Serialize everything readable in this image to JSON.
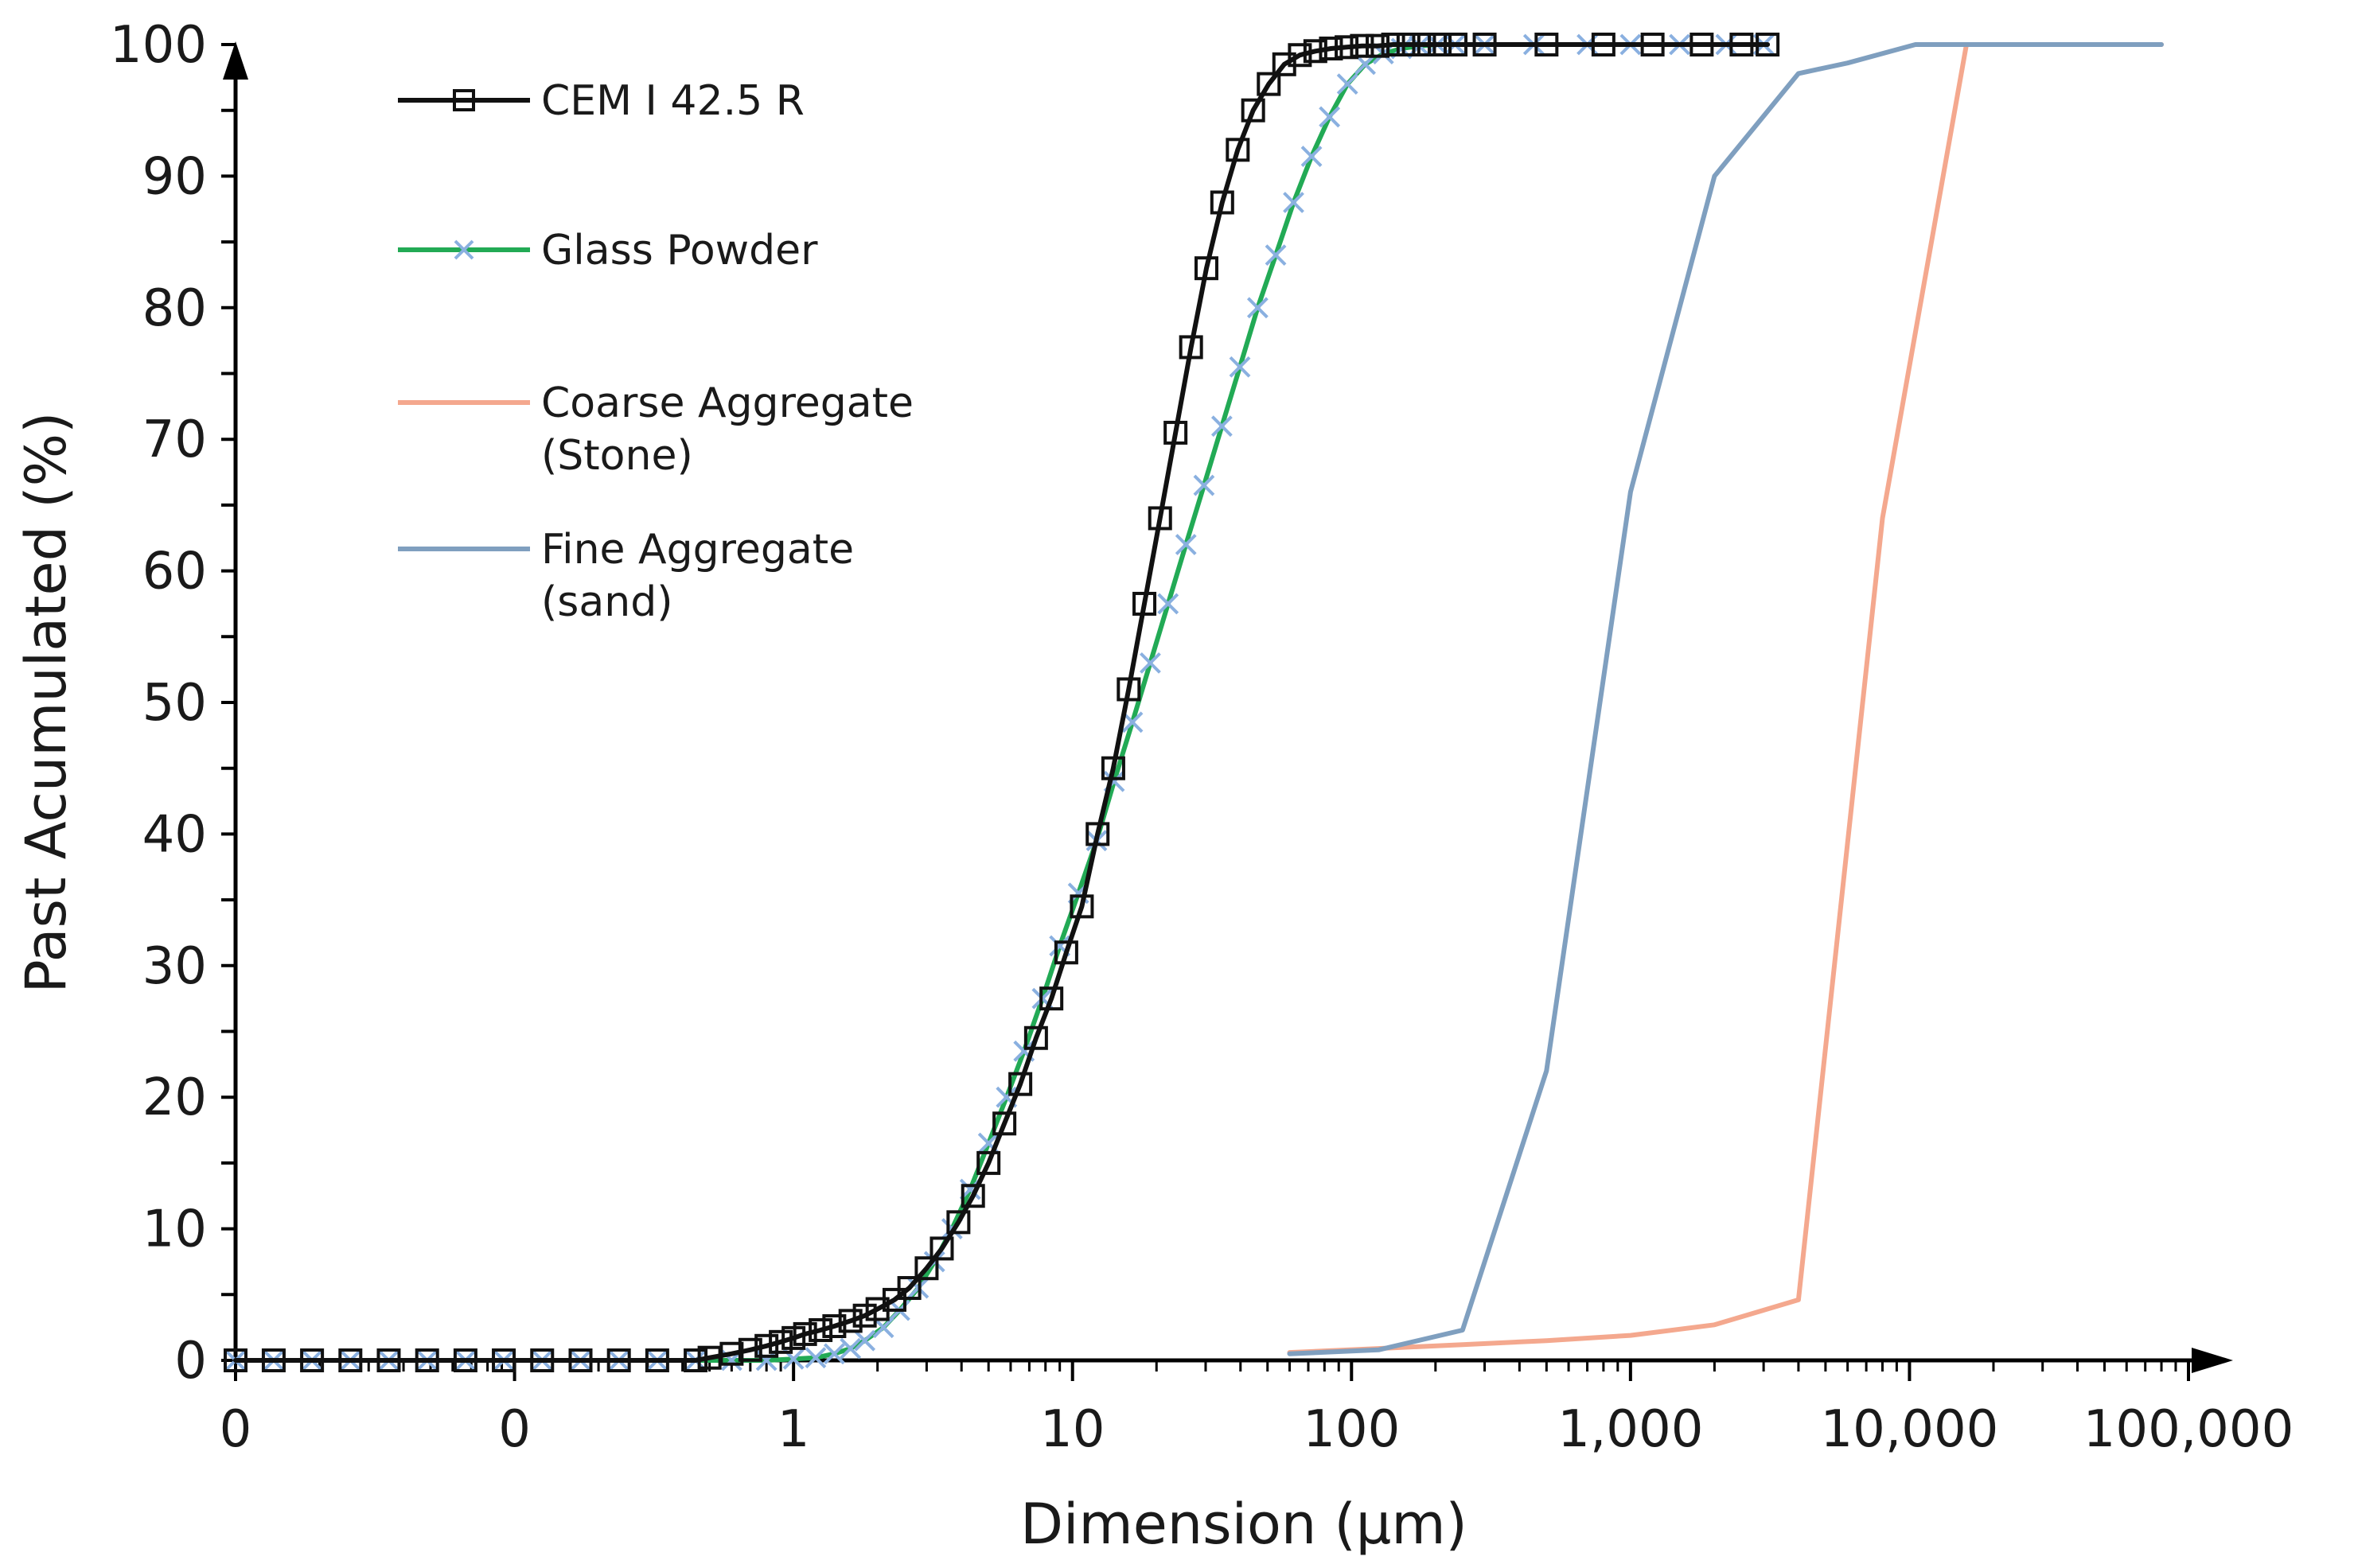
{
  "chart_data": {
    "type": "line",
    "title": "",
    "xlabel": "Dimension (µm)",
    "ylabel": "Past Acumulated (%)",
    "x_scale": "log10",
    "x_range": [
      0.01,
      100000
    ],
    "ylim": [
      0,
      100
    ],
    "x_ticks": [
      {
        "value": 0.01,
        "label": "0"
      },
      {
        "value": 0.1,
        "label": "0"
      },
      {
        "value": 1,
        "label": "1"
      },
      {
        "value": 10,
        "label": "10"
      },
      {
        "value": 100,
        "label": "100"
      },
      {
        "value": 1000,
        "label": "1,000"
      },
      {
        "value": 10000,
        "label": "10,000"
      },
      {
        "value": 100000,
        "label": "100,000"
      }
    ],
    "y_ticks": [
      {
        "value": 0,
        "label": "0"
      },
      {
        "value": 10,
        "label": "10"
      },
      {
        "value": 20,
        "label": "20"
      },
      {
        "value": 30,
        "label": "30"
      },
      {
        "value": 40,
        "label": "40"
      },
      {
        "value": 50,
        "label": "50"
      },
      {
        "value": 60,
        "label": "60"
      },
      {
        "value": 70,
        "label": "70"
      },
      {
        "value": 80,
        "label": "80"
      },
      {
        "value": 90,
        "label": "90"
      },
      {
        "value": 100,
        "label": "100"
      }
    ],
    "legend": {
      "placement": "top-left",
      "entries": [
        {
          "name": "CEM I 42.5 R",
          "lines": [
            "CEM I 42.5 R"
          ],
          "series": "cem"
        },
        {
          "name": "Glass Powder",
          "lines": [
            "Glass Powder"
          ],
          "series": "glass"
        },
        {
          "name": "Coarse Aggregate (Stone)",
          "lines": [
            "Coarse Aggregate",
            "(Stone)"
          ],
          "series": "stone"
        },
        {
          "name": "Fine Aggregate (sand)",
          "lines": [
            "Fine Aggregate",
            "(sand)"
          ],
          "series": "sand"
        }
      ]
    },
    "series": [
      {
        "id": "cem",
        "name": "CEM I 42.5 R",
        "color": "#111111",
        "marker": "square",
        "x": [
          0.01,
          0.0137,
          0.0188,
          0.0258,
          0.0354,
          0.0486,
          0.0667,
          0.0915,
          0.1256,
          0.1724,
          0.2366,
          0.3247,
          0.4456,
          0.5,
          0.6,
          0.7,
          0.8,
          0.9,
          1.0,
          1.1,
          1.25,
          1.4,
          1.6,
          1.8,
          2.0,
          2.3,
          2.6,
          3.0,
          3.4,
          3.9,
          4.4,
          5.0,
          5.7,
          6.5,
          7.4,
          8.4,
          9.5,
          10.8,
          12.3,
          14.0,
          15.9,
          18.1,
          20.6,
          23.4,
          26.6,
          30.2,
          34.4,
          39.1,
          44.4,
          50.5,
          57.4,
          65.3,
          74.2,
          84.4,
          96.0,
          109,
          124,
          141,
          160,
          182,
          207,
          236,
          300,
          500,
          800,
          1200,
          1800,
          2500,
          3100
        ],
        "y": [
          0,
          0,
          0,
          0,
          0,
          0,
          0,
          0,
          0,
          0,
          0,
          0,
          0,
          0.2,
          0.5,
          0.8,
          1.1,
          1.4,
          1.7,
          2.0,
          2.3,
          2.6,
          3.0,
          3.4,
          3.9,
          4.6,
          5.5,
          7.0,
          8.5,
          10.5,
          12.5,
          15.0,
          18.0,
          21.0,
          24.5,
          27.5,
          31.0,
          34.5,
          40.0,
          45.0,
          51.0,
          57.5,
          64.0,
          70.5,
          77.0,
          83.0,
          88.0,
          92.0,
          95.0,
          97.0,
          98.5,
          99.2,
          99.5,
          99.7,
          99.8,
          99.9,
          99.9,
          100,
          100,
          100,
          100,
          100,
          100,
          100,
          100,
          100,
          100,
          100,
          100
        ]
      },
      {
        "id": "glass",
        "name": "Glass Powder",
        "color": "#22aa55",
        "marker": "cross",
        "marker_color": "#8ab0e0",
        "x": [
          0.01,
          0.0137,
          0.0188,
          0.0258,
          0.0354,
          0.0486,
          0.0667,
          0.0915,
          0.1256,
          0.1724,
          0.2366,
          0.3247,
          0.4456,
          0.6,
          0.8,
          1.0,
          1.2,
          1.4,
          1.6,
          1.8,
          2.1,
          2.4,
          2.8,
          3.2,
          3.7,
          4.3,
          5.0,
          5.8,
          6.7,
          7.8,
          9.0,
          10.5,
          12.2,
          14.1,
          16.4,
          19.0,
          22.0,
          25.5,
          29.6,
          34.3,
          39.8,
          46.1,
          53.5,
          62.0,
          71.9,
          83.4,
          96.7,
          112,
          130,
          151,
          175,
          203,
          235,
          300,
          450,
          700,
          1000,
          1500,
          2200,
          3000
        ],
        "y": [
          0,
          0,
          0,
          0,
          0,
          0,
          0,
          0,
          0,
          0,
          0,
          0,
          0,
          0,
          0,
          0.1,
          0.2,
          0.5,
          0.9,
          1.5,
          2.5,
          3.8,
          5.5,
          7.5,
          10.0,
          13.0,
          16.5,
          20.0,
          23.5,
          27.5,
          31.5,
          35.5,
          39.5,
          44.0,
          48.5,
          53.0,
          57.5,
          62.0,
          66.5,
          71.0,
          75.5,
          80.0,
          84.0,
          88.0,
          91.5,
          94.5,
          97.0,
          98.5,
          99.3,
          99.7,
          99.9,
          100,
          100,
          100,
          100,
          100,
          100,
          100,
          100,
          100
        ]
      },
      {
        "id": "stone",
        "name": "Coarse Aggregate (Stone)",
        "color": "#f4a88e",
        "marker": "none",
        "x": [
          60,
          125,
          250,
          500,
          1000,
          2000,
          4000,
          8000,
          16000,
          80000
        ],
        "y": [
          0.6,
          0.9,
          1.2,
          1.5,
          1.9,
          2.7,
          4.6,
          64.0,
          100,
          100
        ]
      },
      {
        "id": "sand",
        "name": "Fine Aggregate (sand)",
        "color": "#7f9fbf",
        "marker": "none",
        "x": [
          60,
          125,
          250,
          500,
          1000,
          2000,
          4000,
          6000,
          10500,
          16000,
          80000
        ],
        "y": [
          0.5,
          0.8,
          2.3,
          22.0,
          66.0,
          90.0,
          97.8,
          98.6,
          100,
          100,
          100
        ]
      }
    ]
  }
}
